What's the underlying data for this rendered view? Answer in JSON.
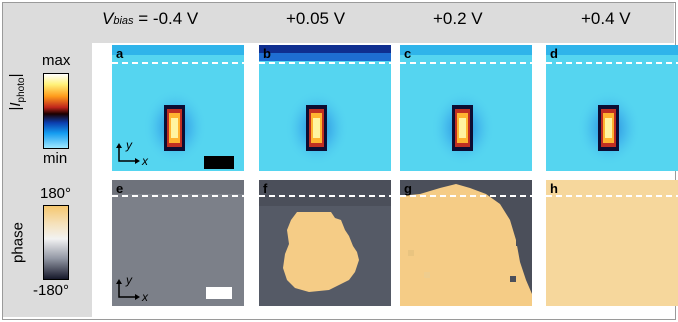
{
  "columns": [
    {
      "prefix": "V",
      "sub": "bias",
      "value": " = -0.4 V"
    },
    {
      "value": "+0.05 V"
    },
    {
      "value": "+0.2 V"
    },
    {
      "value": "+0.4 V"
    }
  ],
  "photocurrent": {
    "label_prefix": "|",
    "label_main": "I",
    "label_sub": "photo",
    "label_suffix": "|",
    "max_label": "max",
    "min_label": "min",
    "panel_letters": [
      "a",
      "b",
      "c",
      "d"
    ]
  },
  "phase": {
    "label": "phase",
    "max_label": "180°",
    "min_label": "-180°",
    "panel_letters": [
      "e",
      "f",
      "g",
      "h"
    ]
  },
  "axes": {
    "x": "x",
    "y": "y"
  },
  "colors": {
    "map_cyan": "#55d5f0",
    "phase_gray": "#7c8089",
    "phase_orange": "#f5cc86",
    "dashed_line": "#ffffff",
    "scale_bar_top": "#000000",
    "scale_bar_bottom": "#ffffff"
  }
}
